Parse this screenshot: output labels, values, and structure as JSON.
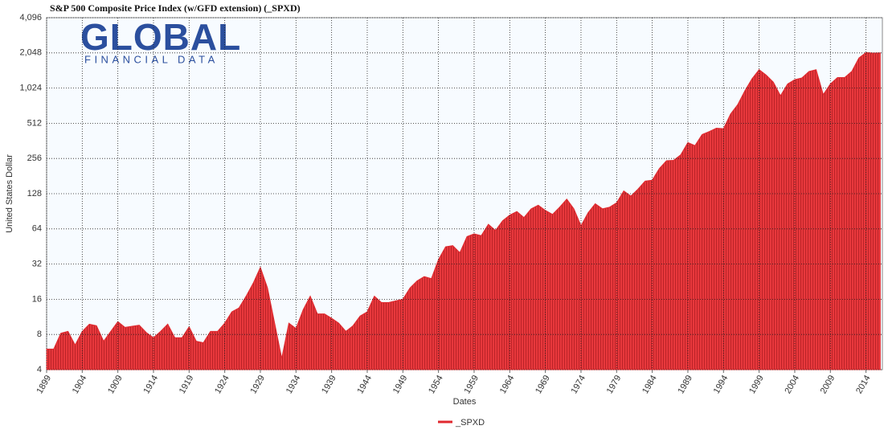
{
  "chart_data": {
    "type": "area",
    "title": "S&P 500 Composite Price Index (w/GFD extension) (_SPXD)",
    "x_label": "Dates",
    "y_label": "United States Dollar",
    "logo": {
      "name": "GLOBAL",
      "tagline": "FINANCIAL DATA"
    },
    "yscale": "log",
    "log_base": 2,
    "grid": true,
    "legend": "bottom",
    "xlim": [
      1899,
      2016.3
    ],
    "ylim": [
      4,
      4096
    ],
    "xticks": [
      1899,
      1904,
      1909,
      1914,
      1919,
      1924,
      1929,
      1934,
      1939,
      1944,
      1949,
      1954,
      1959,
      1964,
      1969,
      1974,
      1979,
      1984,
      1989,
      1994,
      1999,
      2004,
      2009,
      2014
    ],
    "yticks": [
      4,
      8,
      16,
      32,
      64,
      128,
      256,
      512,
      {
        "value": 1024,
        "label": "1,024"
      },
      {
        "value": 2048,
        "label": "2,048"
      },
      {
        "value": 4096,
        "label": "4,096"
      }
    ],
    "x": [
      1899,
      1900,
      1901,
      1902,
      1903,
      1904,
      1905,
      1906,
      1907,
      1908,
      1909,
      1910,
      1911,
      1912,
      1913,
      1914,
      1915,
      1916,
      1917,
      1918,
      1919,
      1920,
      1921,
      1922,
      1923,
      1924,
      1925,
      1926,
      1927,
      1928,
      1929,
      1930,
      1931,
      1932,
      1933,
      1934,
      1935,
      1936,
      1937,
      1938,
      1939,
      1940,
      1941,
      1942,
      1943,
      1944,
      1945,
      1946,
      1947,
      1948,
      1949,
      1950,
      1951,
      1952,
      1953,
      1954,
      1955,
      1956,
      1957,
      1958,
      1959,
      1960,
      1961,
      1962,
      1963,
      1964,
      1965,
      1966,
      1967,
      1968,
      1969,
      1970,
      1971,
      1972,
      1973,
      1974,
      1975,
      1976,
      1977,
      1978,
      1979,
      1980,
      1981,
      1982,
      1983,
      1984,
      1985,
      1986,
      1987,
      1988,
      1989,
      1990,
      1991,
      1992,
      1993,
      1994,
      1995,
      1996,
      1997,
      1998,
      1999,
      2000,
      2001,
      2002,
      2003,
      2004,
      2005,
      2006,
      2007,
      2008,
      2009,
      2010,
      2011,
      2012,
      2013,
      2014,
      2015,
      2016
    ],
    "series": [
      {
        "name": "_SPXD",
        "color": "#e0282e",
        "values": [
          6,
          6,
          8.2,
          8.5,
          6.5,
          8.5,
          9.8,
          9.5,
          7,
          8.5,
          10.3,
          9.2,
          9.4,
          9.6,
          8.3,
          7.5,
          8.5,
          9.8,
          7.5,
          7.5,
          9.3,
          7,
          6.8,
          8.5,
          8.5,
          10,
          12.5,
          13.5,
          17,
          22,
          30,
          20,
          10,
          5,
          10,
          9,
          13,
          17,
          12,
          12,
          11,
          10,
          8.5,
          9.5,
          11.5,
          12.5,
          17,
          15,
          15,
          15.5,
          16,
          20,
          23,
          25,
          24,
          35,
          45,
          46,
          40,
          55,
          58,
          56,
          70,
          62,
          75,
          84,
          90,
          80,
          95,
          102,
          92,
          85,
          98,
          115,
          95,
          68,
          88,
          105,
          95,
          98,
          107,
          135,
          122,
          140,
          164,
          167,
          210,
          245,
          247,
          275,
          350,
          330,
          410,
          435,
          465,
          460,
          615,
          740,
          970,
          1230,
          1470,
          1320,
          1150,
          880,
          1110,
          1210,
          1250,
          1420,
          1470,
          900,
          1110,
          1260,
          1260,
          1420,
          1850,
          2060,
          2040,
          2050
        ]
      }
    ]
  }
}
